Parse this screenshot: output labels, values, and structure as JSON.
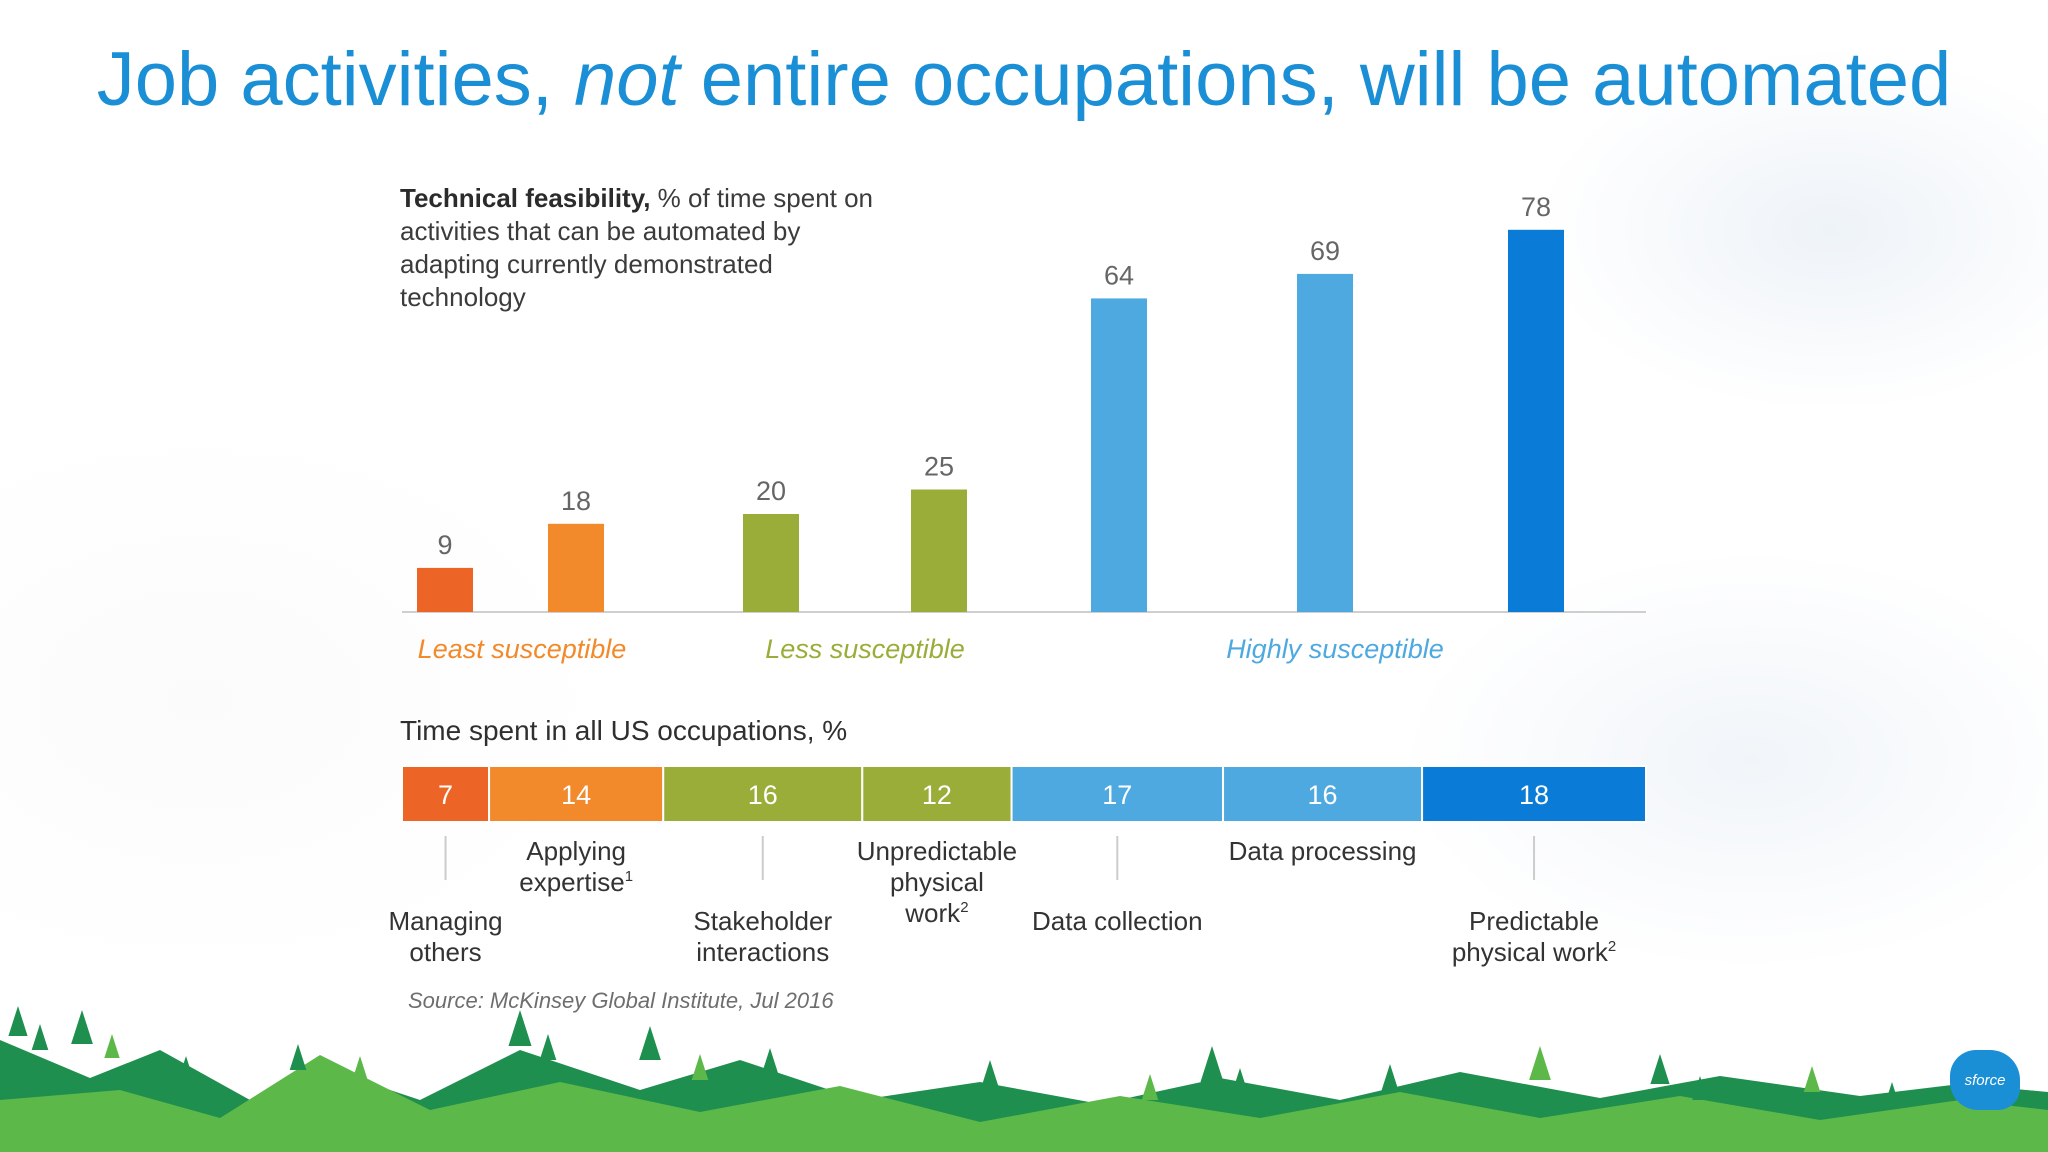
{
  "slide": {
    "title_before": "Job activities, ",
    "title_emph": "not",
    "title_after": " entire occupations, will be automated",
    "source": "Source: McKinsey Global Institute, Jul 2016",
    "logo_text": "sforce"
  },
  "colors": {
    "title": "#1b8fd6",
    "dark_orange": "#ec6527",
    "orange": "#f2892a",
    "olive": "#9aad38",
    "light_blue": "#4fa9e1",
    "blue": "#0a7bd6",
    "tree_dark": "#1f8f4f",
    "tree_light": "#5cb848"
  },
  "chart_data": [
    {
      "type": "bar",
      "title_bold": "Technical feasibility,",
      "title_rest": " % of time spent on activities that can be automated by adapting currently demonstrated technology",
      "categories": [
        "Managing others",
        "Applying expertise",
        "Stakeholder interactions",
        "Unpredictable physical work",
        "Data collection",
        "Data processing",
        "Predictable physical work"
      ],
      "values": [
        9,
        18,
        20,
        25,
        64,
        69,
        78
      ],
      "colors": [
        "#ec6527",
        "#f2892a",
        "#9aad38",
        "#9aad38",
        "#4fa9e1",
        "#4fa9e1",
        "#0a7bd6"
      ],
      "ylim": [
        0,
        80
      ],
      "groups": [
        {
          "label": "Least susceptible",
          "color": "#f2892a"
        },
        {
          "label": "Less susceptible",
          "color": "#9aad38"
        },
        {
          "label": "Highly susceptible",
          "color": "#4fa9e1"
        }
      ]
    },
    {
      "type": "bar",
      "orientation": "stacked-horizontal",
      "title": "Time spent in all US occupations, %",
      "categories": [
        "Managing others",
        "Applying expertise",
        "Stakeholder interactions",
        "Unpredictable physical work",
        "Data collection",
        "Data processing",
        "Predictable physical work"
      ],
      "values": [
        7,
        14,
        16,
        12,
        17,
        16,
        18
      ],
      "colors": [
        "#ec6527",
        "#f2892a",
        "#9aad38",
        "#9aad38",
        "#4fa9e1",
        "#4fa9e1",
        "#0a7bd6"
      ],
      "labels": [
        {
          "lines": [
            "Managing",
            "others"
          ],
          "sup": "",
          "row": "low"
        },
        {
          "lines": [
            "Applying",
            "expertise"
          ],
          "sup": "1",
          "row": "high"
        },
        {
          "lines": [
            "Stakeholder",
            "interactions"
          ],
          "sup": "",
          "row": "low"
        },
        {
          "lines": [
            "Unpredictable",
            "physical",
            "work"
          ],
          "sup": "2",
          "row": "high"
        },
        {
          "lines": [
            "Data collection"
          ],
          "sup": "",
          "row": "low"
        },
        {
          "lines": [
            "Data processing"
          ],
          "sup": "",
          "row": "high"
        },
        {
          "lines": [
            "Predictable",
            "physical work"
          ],
          "sup": "2",
          "row": "low"
        }
      ]
    }
  ]
}
